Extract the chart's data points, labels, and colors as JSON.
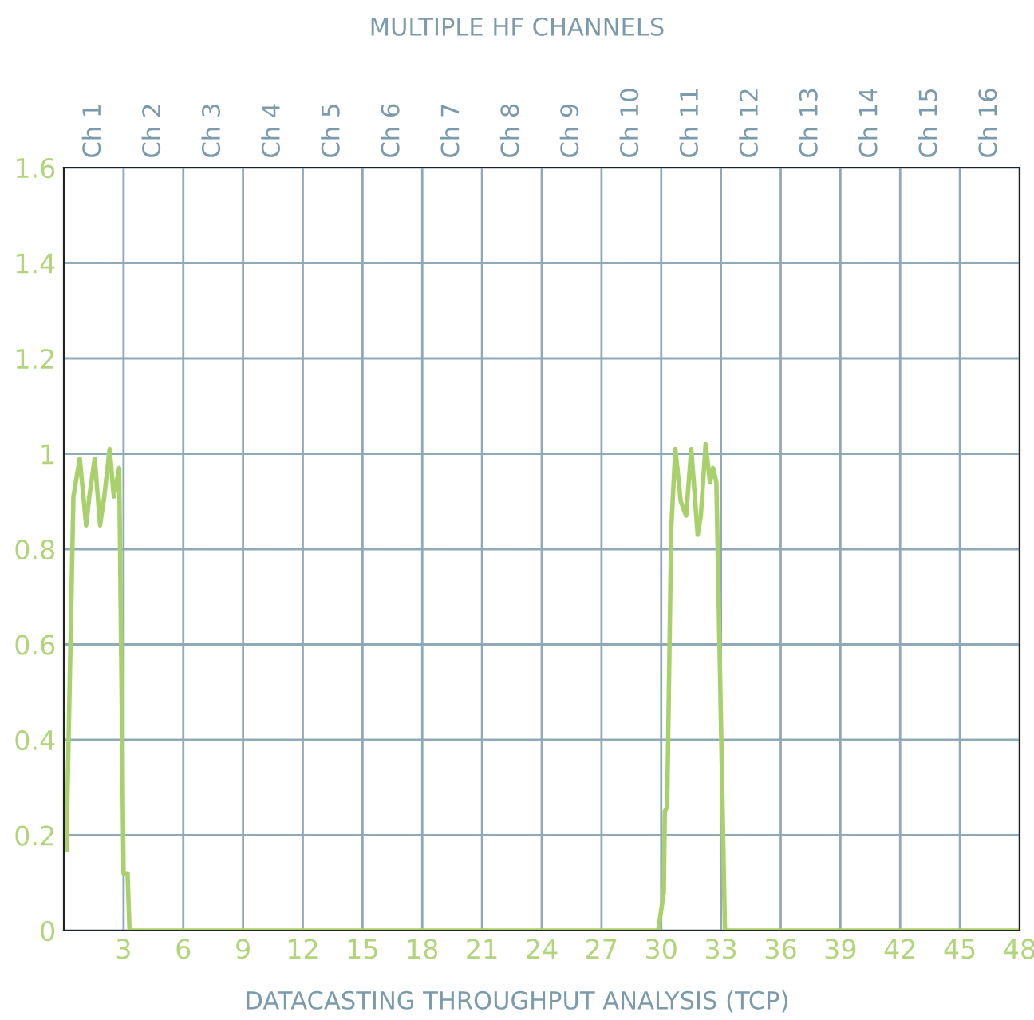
{
  "chart_data": {
    "type": "line",
    "title": "MULTIPLE HF CHANNELS",
    "xlabel": "DATACASTING THROUGHPUT ANALYSIS (TCP)",
    "series": [
      {
        "color": "#a9d16b",
        "x": [
          0.13,
          0.48,
          0.8,
          1.12,
          1.28,
          1.55,
          1.82,
          2.03,
          2.3,
          2.51,
          2.78,
          3.0,
          3.2,
          3.3,
          29.85,
          30.13,
          30.18,
          30.3,
          30.5,
          30.71,
          30.98,
          31.25,
          31.51,
          31.83,
          31.99,
          32.23,
          32.45,
          32.6,
          32.77,
          33.2,
          48
        ],
        "values": [
          0.17,
          0.91,
          0.99,
          0.85,
          0.91,
          0.99,
          0.85,
          0.91,
          1.01,
          0.91,
          0.97,
          0.12,
          0.12,
          0,
          0,
          0.08,
          0.25,
          0.26,
          0.84,
          1.01,
          0.9,
          0.87,
          1.01,
          0.83,
          0.87,
          1.02,
          0.94,
          0.97,
          0.94,
          0,
          0
        ]
      }
    ],
    "xlim": [
      0,
      48
    ],
    "xticks": [
      3,
      6,
      9,
      12,
      15,
      18,
      21,
      24,
      27,
      30,
      33,
      36,
      39,
      42,
      45,
      48
    ],
    "annotations": [
      "Ch 1",
      "Ch 2",
      "Ch 3",
      "Ch 4",
      "Ch 5",
      "Ch 6",
      "Ch 7",
      "Ch 8",
      "Ch 9",
      "Ch 10",
      "Ch 11",
      "Ch 12",
      "Ch 13",
      "Ch 14",
      "Ch 15",
      "Ch 16"
    ],
    "ylim": [
      0,
      1.6
    ],
    "yticks": [
      0,
      0.2,
      0.4,
      0.6,
      0.8,
      1,
      1.2,
      1.4,
      1.6
    ],
    "grid": true
  }
}
